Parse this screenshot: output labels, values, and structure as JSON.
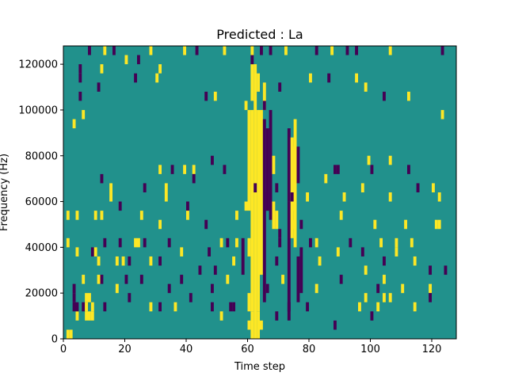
{
  "chart_data": {
    "type": "heatmap",
    "title": "Predicted : La",
    "xlabel": "Time step",
    "ylabel": "Frequency (Hz)",
    "xlim": [
      0,
      128
    ],
    "ylim": [
      0,
      128000
    ],
    "x_ticks": [
      0,
      20,
      40,
      60,
      80,
      100,
      120
    ],
    "y_ticks": [
      0,
      20000,
      40000,
      60000,
      80000,
      100000,
      120000
    ],
    "colormap": "viridis",
    "value_levels": [
      -1,
      0,
      1
    ],
    "colors": {
      "low": "#440154",
      "mid": "#21918c",
      "high": "#fde725"
    },
    "cell_height_hz": 4000,
    "grid": false,
    "cells": [
      [
        1,
        0,
        1
      ],
      [
        2,
        0,
        1
      ],
      [
        3,
        3,
        -1
      ],
      [
        3,
        4,
        -1
      ],
      [
        3,
        5,
        -1
      ],
      [
        4,
        2,
        1
      ],
      [
        4,
        3,
        -1
      ],
      [
        7,
        2,
        1
      ],
      [
        8,
        2,
        1
      ],
      [
        9,
        2,
        1
      ],
      [
        9,
        3,
        1
      ],
      [
        8,
        31,
        -1
      ],
      [
        5,
        28,
        -1
      ],
      [
        13,
        31,
        1
      ],
      [
        16,
        31,
        -1
      ],
      [
        20,
        30,
        1
      ],
      [
        28,
        31,
        1
      ],
      [
        39,
        31,
        1
      ],
      [
        43,
        31,
        -1
      ],
      [
        52,
        31,
        1
      ],
      [
        61,
        31,
        1
      ],
      [
        64,
        31,
        -1
      ],
      [
        67,
        31,
        -1
      ],
      [
        72,
        31,
        1
      ],
      [
        82,
        31,
        -1
      ],
      [
        87,
        31,
        1
      ],
      [
        92,
        31,
        -1
      ],
      [
        95,
        31,
        -1
      ],
      [
        106,
        31,
        1
      ],
      [
        123,
        31,
        -1
      ],
      [
        5,
        29,
        -1
      ],
      [
        5,
        26,
        -1
      ],
      [
        3,
        23,
        1
      ],
      [
        6,
        24,
        1
      ],
      [
        11,
        27,
        -1
      ],
      [
        12,
        29,
        1
      ],
      [
        23,
        28,
        -1
      ],
      [
        24,
        30,
        -1
      ],
      [
        30,
        28,
        1
      ],
      [
        31,
        29,
        1
      ],
      [
        46,
        26,
        -1
      ],
      [
        49,
        26,
        1
      ],
      [
        65,
        25,
        -1
      ],
      [
        70,
        27,
        -1
      ],
      [
        80,
        28,
        1
      ],
      [
        86,
        28,
        -1
      ],
      [
        95,
        28,
        1
      ],
      [
        98,
        27,
        1
      ],
      [
        104,
        26,
        -1
      ],
      [
        112,
        26,
        1
      ],
      [
        123,
        24,
        1
      ],
      [
        31,
        18,
        1
      ],
      [
        35,
        18,
        -1
      ],
      [
        39,
        18,
        1
      ],
      [
        42,
        18,
        1
      ],
      [
        42,
        17,
        -1
      ],
      [
        48,
        19,
        -1
      ],
      [
        52,
        18,
        -1
      ],
      [
        85,
        17,
        1
      ],
      [
        88,
        18,
        -1
      ],
      [
        89,
        18,
        -1
      ],
      [
        99,
        19,
        1
      ],
      [
        100,
        18,
        -1
      ],
      [
        106,
        19,
        1
      ],
      [
        112,
        18,
        -1
      ],
      [
        12,
        17,
        -1
      ],
      [
        15,
        16,
        1
      ],
      [
        15,
        15,
        1
      ],
      [
        26,
        16,
        -1
      ],
      [
        33,
        15,
        1
      ],
      [
        33,
        16,
        1
      ],
      [
        40,
        14,
        -1
      ],
      [
        62,
        16,
        -1
      ],
      [
        69,
        16,
        -1
      ],
      [
        74,
        15,
        -1
      ],
      [
        79,
        15,
        1
      ],
      [
        91,
        15,
        1
      ],
      [
        97,
        16,
        1
      ],
      [
        106,
        15,
        1
      ],
      [
        115,
        16,
        -1
      ],
      [
        120,
        16,
        1
      ],
      [
        122,
        15,
        1
      ],
      [
        1,
        13,
        1
      ],
      [
        4,
        13,
        1
      ],
      [
        10,
        13,
        1
      ],
      [
        12,
        13,
        1
      ],
      [
        18,
        14,
        -1
      ],
      [
        25,
        13,
        1
      ],
      [
        31,
        12,
        1
      ],
      [
        40,
        13,
        1
      ],
      [
        46,
        12,
        -1
      ],
      [
        56,
        13,
        1
      ],
      [
        75,
        12,
        1
      ],
      [
        77,
        12,
        -1
      ],
      [
        90,
        13,
        1
      ],
      [
        101,
        12,
        1
      ],
      [
        111,
        12,
        1
      ],
      [
        121,
        12,
        1
      ],
      [
        122,
        12,
        1
      ],
      [
        1,
        10,
        1
      ],
      [
        4,
        9,
        1
      ],
      [
        9,
        9,
        -1
      ],
      [
        10,
        9,
        1
      ],
      [
        13,
        10,
        -1
      ],
      [
        18,
        10,
        -1
      ],
      [
        23,
        10,
        1
      ],
      [
        24,
        10,
        1
      ],
      [
        26,
        10,
        -1
      ],
      [
        34,
        10,
        -1
      ],
      [
        38,
        9,
        1
      ],
      [
        47,
        9,
        -1
      ],
      [
        51,
        10,
        1
      ],
      [
        53,
        10,
        -1
      ],
      [
        56,
        10,
        1
      ],
      [
        70,
        10,
        -1
      ],
      [
        70,
        11,
        -1
      ],
      [
        80,
        10,
        -1
      ],
      [
        82,
        10,
        1
      ],
      [
        89,
        9,
        1
      ],
      [
        93,
        10,
        -1
      ],
      [
        97,
        9,
        -1
      ],
      [
        103,
        10,
        1
      ],
      [
        108,
        9,
        1
      ],
      [
        108,
        10,
        1
      ],
      [
        113,
        10,
        1
      ],
      [
        11,
        8,
        1
      ],
      [
        17,
        8,
        1
      ],
      [
        19,
        8,
        1
      ],
      [
        21,
        8,
        -1
      ],
      [
        28,
        8,
        1
      ],
      [
        31,
        8,
        -1
      ],
      [
        44,
        7,
        -1
      ],
      [
        49,
        7,
        -1
      ],
      [
        55,
        8,
        1
      ],
      [
        69,
        8,
        -1
      ],
      [
        83,
        8,
        1
      ],
      [
        98,
        7,
        1
      ],
      [
        104,
        8,
        -1
      ],
      [
        114,
        8,
        1
      ],
      [
        119,
        7,
        -1
      ],
      [
        124,
        7,
        -1
      ],
      [
        6,
        6,
        1
      ],
      [
        11,
        6,
        1
      ],
      [
        12,
        6,
        -1
      ],
      [
        17,
        5,
        1
      ],
      [
        20,
        6,
        -1
      ],
      [
        25,
        6,
        -1
      ],
      [
        34,
        5,
        -1
      ],
      [
        38,
        6,
        -1
      ],
      [
        48,
        5,
        -1
      ],
      [
        53,
        6,
        1
      ],
      [
        66,
        5,
        -1
      ],
      [
        71,
        6,
        1
      ],
      [
        82,
        5,
        1
      ],
      [
        90,
        6,
        -1
      ],
      [
        102,
        5,
        -1
      ],
      [
        104,
        6,
        1
      ],
      [
        110,
        5,
        1
      ],
      [
        119,
        5,
        1
      ],
      [
        6,
        3,
        -1
      ],
      [
        7,
        3,
        1
      ],
      [
        7,
        4,
        1
      ],
      [
        8,
        4,
        1
      ],
      [
        13,
        3,
        -1
      ],
      [
        21,
        4,
        -1
      ],
      [
        28,
        3,
        1
      ],
      [
        31,
        3,
        -1
      ],
      [
        36,
        3,
        1
      ],
      [
        41,
        4,
        -1
      ],
      [
        48,
        3,
        -1
      ],
      [
        51,
        2,
        1
      ],
      [
        54,
        3,
        -1
      ],
      [
        55,
        3,
        -1
      ],
      [
        69,
        2,
        -1
      ],
      [
        73,
        3,
        -1
      ],
      [
        79,
        3,
        -1
      ],
      [
        88,
        1,
        -1
      ],
      [
        96,
        3,
        1
      ],
      [
        98,
        4,
        1
      ],
      [
        100,
        2,
        -1
      ],
      [
        102,
        3,
        1
      ],
      [
        104,
        4,
        1
      ],
      [
        106,
        4,
        1
      ],
      [
        114,
        3,
        1
      ],
      [
        119,
        4,
        -1
      ]
    ],
    "columns": [
      [
        58,
        7,
        10,
        -1
      ],
      [
        59,
        14,
        14,
        1
      ],
      [
        59,
        25,
        25,
        1
      ],
      [
        60,
        1,
        1,
        1
      ],
      [
        60,
        3,
        4,
        1
      ],
      [
        60,
        9,
        10,
        1
      ],
      [
        60,
        14,
        24,
        1
      ],
      [
        61,
        0,
        2,
        1
      ],
      [
        61,
        3,
        24,
        1
      ],
      [
        61,
        26,
        29,
        1
      ],
      [
        61,
        30,
        30,
        -1
      ],
      [
        62,
        0,
        29,
        1
      ],
      [
        63,
        0,
        2,
        1
      ],
      [
        63,
        3,
        24,
        1
      ],
      [
        63,
        27,
        28,
        1
      ],
      [
        64,
        1,
        1,
        1
      ],
      [
        64,
        7,
        24,
        1
      ],
      [
        65,
        4,
        23,
        -1
      ],
      [
        65,
        25,
        27,
        1
      ],
      [
        66,
        14,
        22,
        -1
      ],
      [
        66,
        14,
        15,
        -1
      ],
      [
        67,
        13,
        24,
        -1
      ],
      [
        68,
        12,
        14,
        1
      ],
      [
        68,
        18,
        19,
        1
      ],
      [
        69,
        12,
        13,
        1
      ],
      [
        73,
        2,
        14,
        -1
      ],
      [
        73,
        15,
        22,
        -1
      ],
      [
        74,
        11,
        21,
        1
      ],
      [
        75,
        10,
        23,
        1
      ],
      [
        75,
        14,
        20,
        1
      ],
      [
        76,
        4,
        8,
        -1
      ],
      [
        76,
        17,
        20,
        -1
      ],
      [
        77,
        5,
        9,
        -1
      ]
    ]
  }
}
